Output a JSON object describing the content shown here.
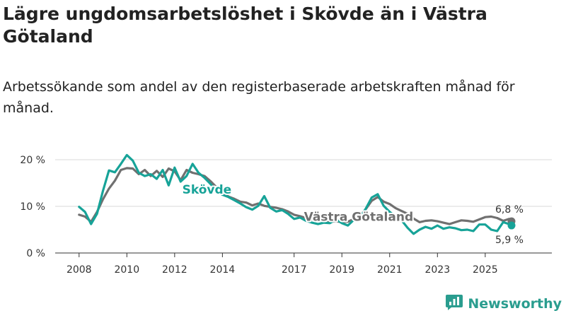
{
  "title": "Lägre ungdomsarbetslöshet i Skövde än i Västra Götaland",
  "subtitle": "Arbetssökande som andel av den registerbaserade arbetskraften månad för månad.",
  "brand": {
    "name": "Newsworthy",
    "icon": "bar-chart-logo-icon"
  },
  "colors": {
    "skovde": "#17a398",
    "vg": "#707070",
    "grid": "#d9d9d9",
    "axis": "#333333"
  },
  "chart_data": {
    "type": "line",
    "title": "Lägre ungdomsarbetslöshet i Skövde än i Västra Götaland",
    "ylabel": "",
    "xlabel": "",
    "ylim": [
      0,
      20
    ],
    "xlim": [
      2007.0,
      2026.9
    ],
    "y_ticks": [
      {
        "value": 0,
        "label": "0 %"
      },
      {
        "value": 10,
        "label": "10 %"
      },
      {
        "value": 20,
        "label": "20 %"
      }
    ],
    "x_ticks": [
      {
        "value": 2008,
        "label": "2008"
      },
      {
        "value": 2010,
        "label": "2010"
      },
      {
        "value": 2012,
        "label": "2012"
      },
      {
        "value": 2014,
        "label": "2014"
      },
      {
        "value": 2017,
        "label": "2017"
      },
      {
        "value": 2019,
        "label": "2019"
      },
      {
        "value": 2021,
        "label": "2021"
      },
      {
        "value": 2023,
        "label": "2023"
      },
      {
        "value": 2025,
        "label": "2025"
      }
    ],
    "series": [
      {
        "name": "Västra Götaland",
        "label": "Västra Götaland",
        "label_at": [
          2019.7,
          7.8
        ],
        "x": [
          2008.0,
          2008.25,
          2008.5,
          2008.75,
          2009.0,
          2009.25,
          2009.5,
          2009.75,
          2010.0,
          2010.25,
          2010.5,
          2010.75,
          2011.0,
          2011.25,
          2011.5,
          2011.75,
          2012.0,
          2012.25,
          2012.5,
          2012.75,
          2013.0,
          2013.25,
          2013.5,
          2013.75,
          2014.0,
          2014.25,
          2014.5,
          2014.75,
          2015.0,
          2015.25,
          2015.5,
          2015.75,
          2016.0,
          2016.25,
          2016.5,
          2016.75,
          2017.0,
          2017.25,
          2017.5,
          2017.75,
          2018.0,
          2018.25,
          2018.5,
          2018.75,
          2019.0,
          2019.25,
          2019.5,
          2019.75,
          2020.0,
          2020.25,
          2020.5,
          2020.75,
          2021.0,
          2021.25,
          2021.5,
          2021.75,
          2022.0,
          2022.25,
          2022.5,
          2022.75,
          2023.0,
          2023.25,
          2023.5,
          2023.75,
          2024.0,
          2024.25,
          2024.5,
          2024.75,
          2025.0,
          2025.25,
          2025.5,
          2025.75,
          2026.0,
          2026.1
        ],
        "values": [
          8.2,
          7.8,
          6.7,
          8.8,
          11.5,
          13.8,
          15.5,
          17.8,
          18.2,
          18.1,
          16.9,
          17.8,
          16.5,
          17.6,
          16.3,
          18.1,
          17.5,
          15.6,
          17.8,
          17.2,
          16.9,
          16.5,
          15.4,
          14.1,
          13.2,
          12.1,
          11.6,
          11.0,
          10.8,
          10.2,
          10.6,
          10.1,
          9.9,
          9.7,
          9.4,
          8.9,
          8.2,
          7.9,
          7.5,
          7.2,
          7.0,
          6.8,
          6.7,
          6.8,
          6.6,
          6.7,
          7.3,
          7.9,
          9.4,
          11.2,
          12.0,
          11.0,
          10.5,
          9.6,
          9.0,
          8.4,
          7.4,
          6.6,
          6.9,
          7.0,
          6.8,
          6.5,
          6.2,
          6.6,
          7.0,
          6.9,
          6.7,
          7.2,
          7.7,
          7.8,
          7.5,
          6.9,
          7.3,
          6.8
        ]
      },
      {
        "name": "Skövde",
        "label": "Skövde",
        "label_at": [
          2013.35,
          13.6
        ],
        "x": [
          2008.0,
          2008.25,
          2008.5,
          2008.75,
          2009.0,
          2009.25,
          2009.5,
          2009.75,
          2010.0,
          2010.25,
          2010.5,
          2010.75,
          2011.0,
          2011.25,
          2011.5,
          2011.75,
          2012.0,
          2012.25,
          2012.5,
          2012.75,
          2013.0,
          2013.25,
          2013.5,
          2013.75,
          2014.0,
          2014.25,
          2014.5,
          2014.75,
          2015.0,
          2015.25,
          2015.5,
          2015.75,
          2016.0,
          2016.25,
          2016.5,
          2016.75,
          2017.0,
          2017.25,
          2017.5,
          2017.75,
          2018.0,
          2018.25,
          2018.5,
          2018.75,
          2019.0,
          2019.25,
          2019.5,
          2019.75,
          2020.0,
          2020.25,
          2020.5,
          2020.75,
          2021.0,
          2021.25,
          2021.5,
          2021.75,
          2022.0,
          2022.25,
          2022.5,
          2022.75,
          2023.0,
          2023.25,
          2023.5,
          2023.75,
          2024.0,
          2024.25,
          2024.5,
          2024.75,
          2025.0,
          2025.25,
          2025.5,
          2025.75,
          2026.0,
          2026.1
        ],
        "values": [
          9.9,
          8.8,
          6.2,
          8.4,
          13.3,
          17.7,
          17.3,
          19.1,
          21.0,
          19.8,
          17.2,
          16.5,
          16.9,
          15.9,
          17.8,
          14.5,
          18.3,
          15.3,
          16.5,
          19.1,
          17.2,
          16.1,
          14.8,
          13.4,
          12.5,
          12.0,
          11.3,
          10.6,
          9.8,
          9.3,
          10.1,
          12.2,
          9.7,
          8.9,
          9.2,
          8.4,
          7.3,
          7.6,
          6.9,
          6.5,
          6.2,
          6.5,
          6.4,
          7.2,
          6.4,
          5.9,
          7.1,
          7.6,
          9.5,
          11.9,
          12.6,
          10.1,
          8.8,
          7.8,
          7.0,
          5.4,
          4.1,
          5.0,
          5.6,
          5.2,
          5.9,
          5.2,
          5.5,
          5.3,
          4.9,
          5.0,
          4.7,
          6.1,
          6.1,
          5.0,
          4.7,
          6.6,
          6.2,
          5.9
        ]
      }
    ],
    "end_labels": [
      {
        "series": "Västra Götaland",
        "text": "6,8 %",
        "value": 6.8,
        "position": "above"
      },
      {
        "series": "Skövde",
        "text": "5,9 %",
        "value": 5.9,
        "position": "below"
      }
    ],
    "grid": true,
    "legend": "inline labels"
  }
}
